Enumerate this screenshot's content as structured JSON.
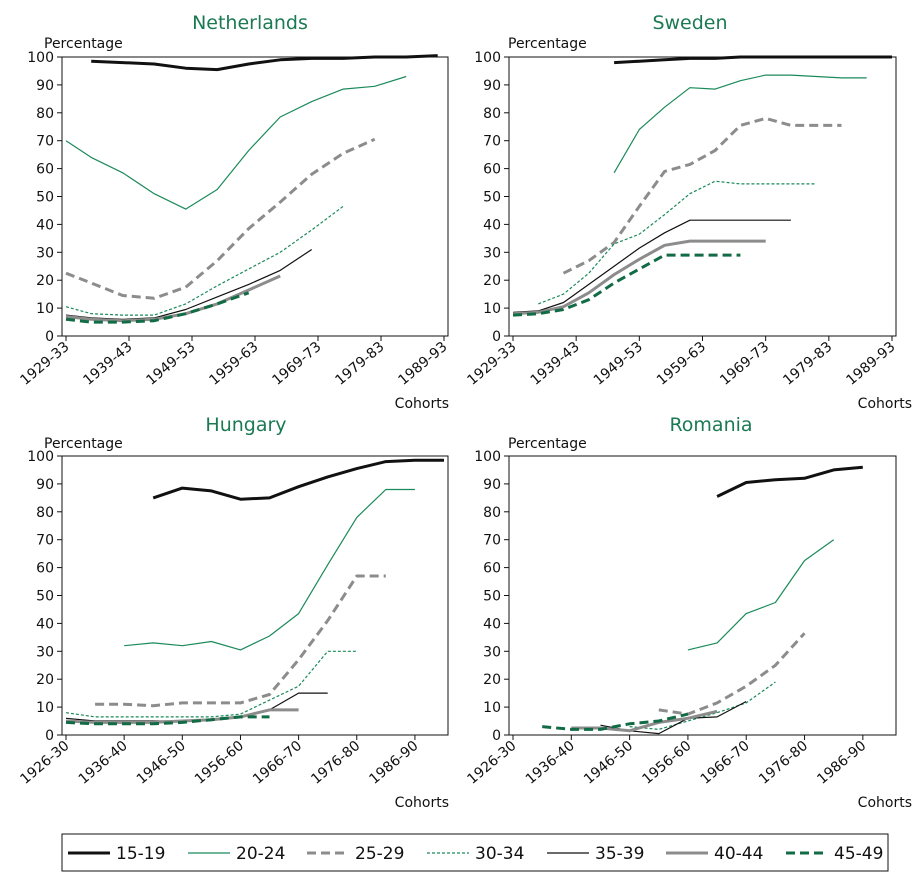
{
  "chart_data": [
    {
      "type": "line",
      "title": "Netherlands",
      "ylabel": "Percentage",
      "xlabel": "Cohorts",
      "ylim": [
        0,
        100
      ],
      "yticks": [
        0,
        10,
        20,
        30,
        40,
        50,
        60,
        70,
        80,
        90,
        100
      ],
      "xlim": [
        1931,
        1991
      ],
      "xticks": [
        {
          "label": "1929-33",
          "x": 1931
        },
        {
          "label": "1939-43",
          "x": 1941
        },
        {
          "label": "1949-53",
          "x": 1951
        },
        {
          "label": "1959-63",
          "x": 1961
        },
        {
          "label": "1969-73",
          "x": 1971
        },
        {
          "label": "1979-83",
          "x": 1981
        },
        {
          "label": "1989-93",
          "x": 1991
        }
      ],
      "series": [
        {
          "name": "15-19",
          "x": [
            1935,
            1940,
            1945,
            1950,
            1955,
            1960,
            1965,
            1970,
            1975,
            1980,
            1985,
            1990
          ],
          "y": [
            98.5,
            98,
            97.5,
            96,
            95.5,
            97.5,
            99,
            99.5,
            99.5,
            100,
            100,
            100.5
          ]
        },
        {
          "name": "20-24",
          "x": [
            1931,
            1935,
            1940,
            1945,
            1950,
            1955,
            1960,
            1965,
            1970,
            1975,
            1980,
            1985
          ],
          "y": [
            70,
            64,
            58.5,
            51,
            45.5,
            52.5,
            66.5,
            78.5,
            84,
            88.5,
            89.5,
            93
          ]
        },
        {
          "name": "25-29",
          "x": [
            1931,
            1935,
            1940,
            1945,
            1950,
            1955,
            1960,
            1965,
            1970,
            1975,
            1980
          ],
          "y": [
            22.5,
            19,
            14.5,
            13.5,
            17.5,
            27,
            38.5,
            48,
            58,
            65.5,
            70.5
          ]
        },
        {
          "name": "30-34",
          "x": [
            1931,
            1935,
            1940,
            1945,
            1950,
            1955,
            1960,
            1965,
            1970,
            1975
          ],
          "y": [
            10.5,
            8,
            7.5,
            7.5,
            11.5,
            18,
            24,
            30,
            38,
            46.5
          ]
        },
        {
          "name": "35-39",
          "x": [
            1931,
            1935,
            1940,
            1945,
            1950,
            1955,
            1960,
            1965,
            1970
          ],
          "y": [
            7.5,
            6.5,
            6,
            6.5,
            9.5,
            14,
            18.5,
            23.5,
            31
          ]
        },
        {
          "name": "40-44",
          "x": [
            1931,
            1935,
            1940,
            1945,
            1950,
            1955,
            1960,
            1965
          ],
          "y": [
            7,
            6,
            5.5,
            6,
            8,
            11.5,
            16.5,
            21.5
          ]
        },
        {
          "name": "45-49",
          "x": [
            1931,
            1935,
            1940,
            1945,
            1950,
            1955,
            1960
          ],
          "y": [
            6,
            5,
            5,
            5.5,
            8,
            11.5,
            15.5
          ]
        }
      ]
    },
    {
      "type": "line",
      "title": "Sweden",
      "ylabel": "Percentage",
      "xlabel": "Cohorts",
      "ylim": [
        0,
        100
      ],
      "yticks": [
        0,
        10,
        20,
        30,
        40,
        50,
        60,
        70,
        80,
        90,
        100
      ],
      "xlim": [
        1931,
        1991
      ],
      "xticks": [
        {
          "label": "1929-33",
          "x": 1931
        },
        {
          "label": "1939-43",
          "x": 1941
        },
        {
          "label": "1949-53",
          "x": 1951
        },
        {
          "label": "1959-63",
          "x": 1961
        },
        {
          "label": "1969-73",
          "x": 1971
        },
        {
          "label": "1979-83",
          "x": 1981
        },
        {
          "label": "1989-93",
          "x": 1991
        }
      ],
      "series": [
        {
          "name": "15-19",
          "x": [
            1947,
            1951,
            1955,
            1959,
            1963,
            1967,
            1971,
            1975,
            1979,
            1983,
            1987,
            1991
          ],
          "y": [
            98,
            98.5,
            99,
            99.5,
            99.5,
            100,
            100,
            100,
            100,
            100,
            100,
            100
          ]
        },
        {
          "name": "20-24",
          "x": [
            1947,
            1951,
            1955,
            1959,
            1963,
            1967,
            1971,
            1975,
            1979,
            1983,
            1987
          ],
          "y": [
            58.5,
            74,
            82,
            89,
            88.5,
            91.5,
            93.5,
            93.5,
            93,
            92.5,
            92.5
          ]
        },
        {
          "name": "25-29",
          "x": [
            1939,
            1943,
            1947,
            1951,
            1955,
            1959,
            1963,
            1967,
            1971,
            1975,
            1979,
            1983
          ],
          "y": [
            22.5,
            27,
            33.5,
            46.5,
            59,
            61.5,
            66.5,
            75.5,
            78,
            75.5,
            75.5,
            75.5
          ]
        },
        {
          "name": "30-34",
          "x": [
            1935,
            1939,
            1943,
            1947,
            1951,
            1955,
            1959,
            1963,
            1967,
            1971,
            1975,
            1979
          ],
          "y": [
            11.5,
            15,
            22.5,
            33,
            36.5,
            43.5,
            51,
            55.5,
            54.5,
            54.5,
            54.5,
            54.5
          ]
        },
        {
          "name": "35-39",
          "x": [
            1931,
            1935,
            1939,
            1943,
            1947,
            1951,
            1955,
            1959,
            1963,
            1967,
            1971,
            1975
          ],
          "y": [
            8.5,
            9,
            12,
            18.5,
            25,
            31.5,
            37,
            41.5,
            41.5,
            41.5,
            41.5,
            41.5
          ]
        },
        {
          "name": "40-44",
          "x": [
            1931,
            1935,
            1939,
            1943,
            1947,
            1951,
            1955,
            1959,
            1963,
            1967,
            1971
          ],
          "y": [
            8,
            8.5,
            10.5,
            15.5,
            22,
            27.5,
            32.5,
            34,
            34,
            34,
            34
          ]
        },
        {
          "name": "45-49",
          "x": [
            1931,
            1935,
            1939,
            1943,
            1947,
            1951,
            1955,
            1959,
            1963,
            1967
          ],
          "y": [
            7.5,
            8,
            9.5,
            13,
            19,
            24,
            29,
            29,
            29,
            29
          ]
        }
      ]
    },
    {
      "type": "line",
      "title": "Hungary",
      "ylabel": "Percentage",
      "xlabel": "Cohorts",
      "ylim": [
        0,
        100
      ],
      "yticks": [
        0,
        10,
        20,
        30,
        40,
        50,
        60,
        70,
        80,
        90,
        100
      ],
      "xlim": [
        1928,
        1993
      ],
      "xticks": [
        {
          "label": "1926-30",
          "x": 1928
        },
        {
          "label": "1936-40",
          "x": 1938
        },
        {
          "label": "1946-50",
          "x": 1948
        },
        {
          "label": "1956-60",
          "x": 1958
        },
        {
          "label": "1966-70",
          "x": 1968
        },
        {
          "label": "1976-80",
          "x": 1978
        },
        {
          "label": "1986-90",
          "x": 1988
        }
      ],
      "series": [
        {
          "name": "15-19",
          "x": [
            1943,
            1948,
            1953,
            1958,
            1963,
            1968,
            1973,
            1978,
            1983,
            1988,
            1993
          ],
          "y": [
            85,
            88.5,
            87.5,
            84.5,
            85,
            89,
            92.5,
            95.5,
            98,
            98.5,
            98.5
          ]
        },
        {
          "name": "20-24",
          "x": [
            1938,
            1943,
            1948,
            1953,
            1958,
            1963,
            1968,
            1973,
            1978,
            1983,
            1988
          ],
          "y": [
            32,
            33,
            32,
            33.5,
            30.5,
            35.5,
            43.5,
            61,
            78,
            88,
            88
          ]
        },
        {
          "name": "25-29",
          "x": [
            1933,
            1938,
            1943,
            1948,
            1953,
            1958,
            1963,
            1968,
            1973,
            1978,
            1983
          ],
          "y": [
            11,
            11,
            10.5,
            11.5,
            11.5,
            11.5,
            14.5,
            27,
            41,
            57,
            57
          ]
        },
        {
          "name": "30-34",
          "x": [
            1928,
            1933,
            1938,
            1943,
            1948,
            1953,
            1958,
            1963,
            1968,
            1973,
            1978
          ],
          "y": [
            8,
            6.5,
            6.5,
            6.5,
            6.5,
            6.5,
            7.5,
            12.5,
            17.5,
            30,
            30
          ]
        },
        {
          "name": "35-39",
          "x": [
            1928,
            1933,
            1938,
            1943,
            1948,
            1953,
            1958,
            1963,
            1968,
            1973
          ],
          "y": [
            6,
            5,
            5,
            5,
            5,
            5.5,
            6.5,
            9,
            15,
            15
          ]
        },
        {
          "name": "40-44",
          "x": [
            1928,
            1933,
            1938,
            1943,
            1948,
            1953,
            1958,
            1963,
            1968
          ],
          "y": [
            5,
            4.5,
            4.5,
            4.5,
            5,
            5.5,
            6.5,
            9,
            9
          ]
        },
        {
          "name": "45-49",
          "x": [
            1928,
            1933,
            1938,
            1943,
            1948,
            1953,
            1958,
            1963
          ],
          "y": [
            4.5,
            4,
            4,
            4,
            4.5,
            5.5,
            6.5,
            6.5
          ]
        }
      ]
    },
    {
      "type": "line",
      "title": "Romania",
      "ylabel": "Percentage",
      "xlabel": "Cohorts",
      "ylim": [
        0,
        100
      ],
      "yticks": [
        0,
        10,
        20,
        30,
        40,
        50,
        60,
        70,
        80,
        90,
        100
      ],
      "xlim": [
        1928,
        1993
      ],
      "xticks": [
        {
          "label": "1926-30",
          "x": 1928
        },
        {
          "label": "1936-40",
          "x": 1938
        },
        {
          "label": "1946-50",
          "x": 1948
        },
        {
          "label": "1956-60",
          "x": 1958
        },
        {
          "label": "1966-70",
          "x": 1968
        },
        {
          "label": "1976-80",
          "x": 1978
        },
        {
          "label": "1986-90",
          "x": 1988
        }
      ],
      "series": [
        {
          "name": "15-19",
          "x": [
            1963,
            1968,
            1973,
            1978,
            1983,
            1988
          ],
          "y": [
            85.5,
            90.5,
            91.5,
            92,
            95,
            96
          ]
        },
        {
          "name": "20-24",
          "x": [
            1958,
            1963,
            1968,
            1973,
            1978,
            1983
          ],
          "y": [
            30.5,
            33,
            43.5,
            47.5,
            62.5,
            70
          ]
        },
        {
          "name": "25-29",
          "x": [
            1953,
            1958,
            1963,
            1968,
            1973,
            1978
          ],
          "y": [
            9,
            7.5,
            11.5,
            17.5,
            25,
            36.5
          ]
        },
        {
          "name": "30-34",
          "x": [
            1948,
            1953,
            1958,
            1963,
            1968,
            1973
          ],
          "y": [
            3,
            2,
            5,
            8,
            11.5,
            19
          ]
        },
        {
          "name": "35-39",
          "x": [
            1943,
            1948,
            1953,
            1958,
            1963,
            1968
          ],
          "y": [
            3.5,
            1.5,
            0.5,
            6,
            6.5,
            12
          ]
        },
        {
          "name": "40-44",
          "x": [
            1938,
            1943,
            1948,
            1953,
            1958,
            1963
          ],
          "y": [
            2.5,
            2.5,
            1.5,
            4.5,
            6,
            8.5
          ]
        },
        {
          "name": "45-49",
          "x": [
            1933,
            1938,
            1943,
            1948,
            1953,
            1958
          ],
          "y": [
            3,
            2,
            2,
            4,
            5,
            7.5
          ]
        }
      ]
    }
  ],
  "legend": {
    "placement": "bottom",
    "items": [
      {
        "label": "15-19",
        "color": "#111111",
        "style": "solid-thick"
      },
      {
        "label": "20-24",
        "color": "#1b8a5a",
        "style": "solid-thin"
      },
      {
        "label": "25-29",
        "color": "#8c8c8c",
        "style": "dashed-thick"
      },
      {
        "label": "30-34",
        "color": "#1b8a5a",
        "style": "dotted-thin"
      },
      {
        "label": "35-39",
        "color": "#111111",
        "style": "solid-thin"
      },
      {
        "label": "40-44",
        "color": "#8c8c8c",
        "style": "solid-thick"
      },
      {
        "label": "45-49",
        "color": "#116b44",
        "style": "dashed-thick"
      }
    ]
  }
}
